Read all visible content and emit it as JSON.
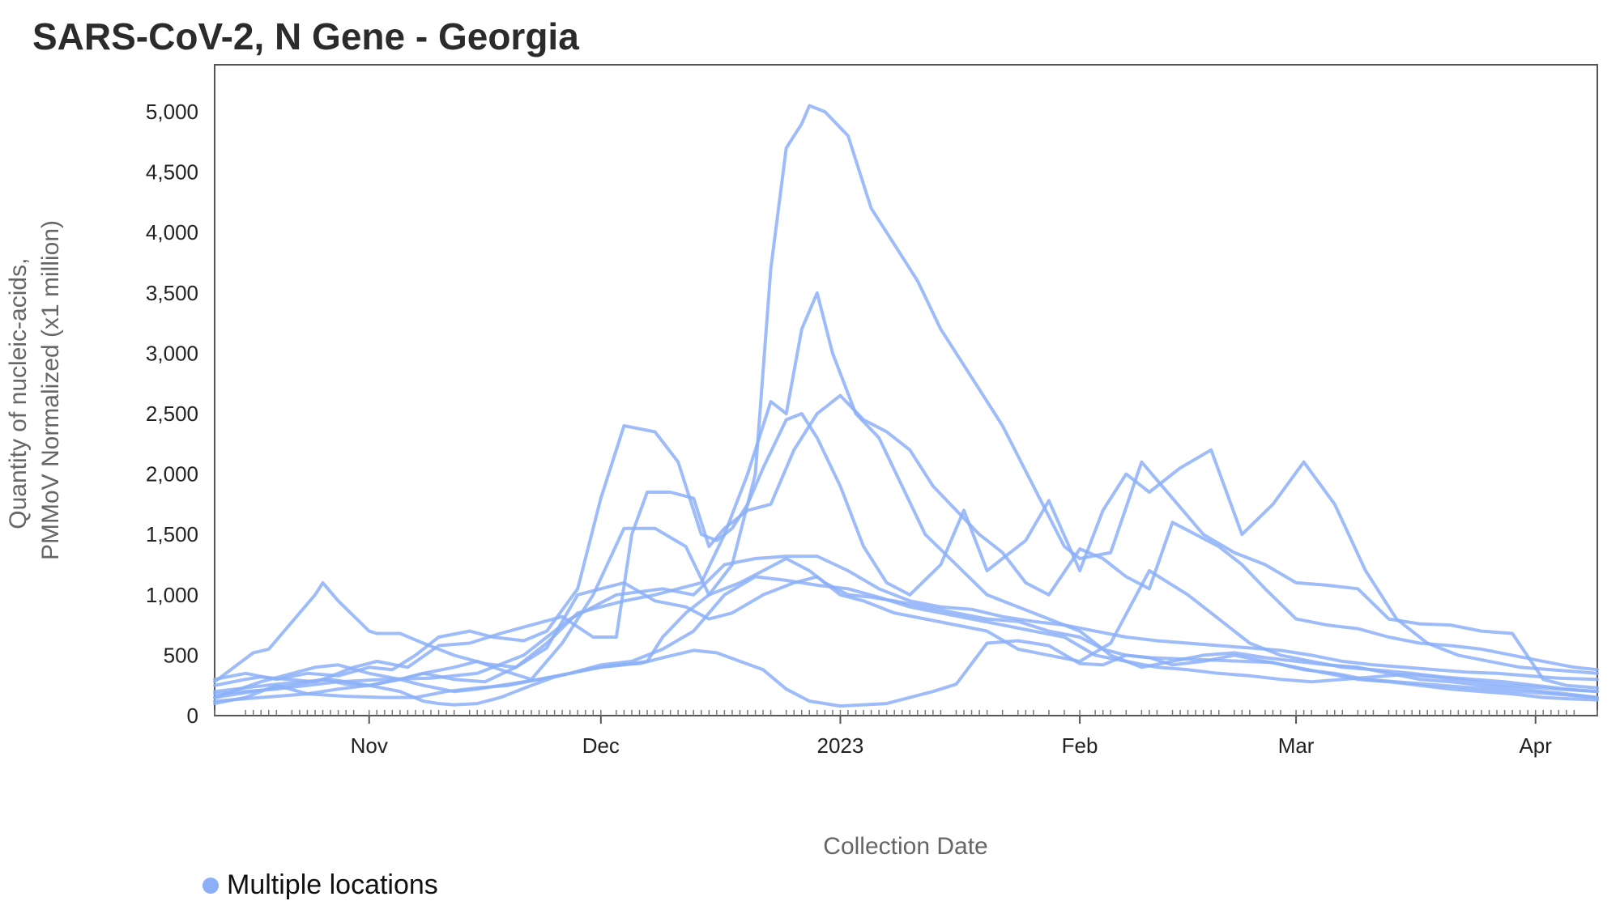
{
  "chart_data": {
    "type": "line",
    "title": "SARS-CoV-2, N Gene - Georgia",
    "xlabel": "Collection Date",
    "ylabel": [
      "Quantity of nucleic-acids,",
      "PMMoV Normalized (x1 million)"
    ],
    "ylim": [
      0,
      5000
    ],
    "xlim": [
      "2022-10-12",
      "2023-04-09"
    ],
    "grid": false,
    "legend_position": "bottom-left",
    "y_ticks": [
      {
        "value": 0,
        "label": "0"
      },
      {
        "value": 500,
        "label": "500"
      },
      {
        "value": 1000,
        "label": "1,000"
      },
      {
        "value": 1500,
        "label": "1,500"
      },
      {
        "value": 2000,
        "label": "2,000"
      },
      {
        "value": 2500,
        "label": "2,500"
      },
      {
        "value": 3000,
        "label": "3,000"
      },
      {
        "value": 3500,
        "label": "3,500"
      },
      {
        "value": 4000,
        "label": "4,000"
      },
      {
        "value": 4500,
        "label": "4,500"
      },
      {
        "value": 5000,
        "label": "5,000"
      }
    ],
    "x_ticks": [
      {
        "date": "2022-11-01",
        "label": "Nov"
      },
      {
        "date": "2022-12-01",
        "label": "Dec"
      },
      {
        "date": "2023-01-01",
        "label": "2023"
      },
      {
        "date": "2023-02-01",
        "label": "Feb"
      },
      {
        "date": "2023-03-01",
        "label": "Mar"
      },
      {
        "date": "2023-04-01",
        "label": "Apr"
      }
    ],
    "legend": {
      "label": "Multiple locations",
      "color": "#8cb0f8"
    },
    "series_color": "#8cb0f8",
    "series": [
      {
        "x": [
          "2022-10-12",
          "2022-10-16",
          "2022-10-18",
          "2022-10-25",
          "2022-10-26",
          "2022-10-29",
          "2022-11-01",
          "2022-11-05",
          "2022-11-08",
          "2022-11-10",
          "2022-11-12",
          "2022-11-15",
          "2022-11-18",
          "2022-11-22",
          "2022-11-25",
          "2022-11-29",
          "2022-12-03",
          "2022-12-06",
          "2022-12-09",
          "2022-12-13",
          "2022-12-16",
          "2022-12-19",
          "2022-12-22",
          "2022-12-25",
          "2022-12-28",
          "2022-12-30",
          "2023-01-01",
          "2023-01-04",
          "2023-01-07",
          "2023-01-10",
          "2023-01-13",
          "2023-01-16",
          "2023-01-20",
          "2023-01-24",
          "2023-01-28",
          "2023-02-01",
          "2023-02-04",
          "2023-02-07",
          "2023-02-10",
          "2023-02-13",
          "2023-02-17",
          "2023-02-21",
          "2023-02-25",
          "2023-03-01",
          "2023-03-05",
          "2023-03-09",
          "2023-03-13",
          "2023-03-17",
          "2023-03-21",
          "2023-03-25",
          "2023-03-29",
          "2023-04-02",
          "2023-04-05",
          "2023-04-09"
        ],
        "y": [
          250,
          300,
          320,
          280,
          300,
          260,
          250,
          200,
          120,
          100,
          90,
          100,
          150,
          250,
          320,
          380,
          420,
          430,
          480,
          540,
          520,
          450,
          380,
          220,
          120,
          100,
          80,
          90,
          100,
          150,
          200,
          260,
          600,
          620,
          580,
          430,
          420,
          500,
          480,
          420,
          450,
          500,
          450,
          400,
          350,
          300,
          280,
          250,
          220,
          200,
          180,
          150,
          140,
          130
        ]
      },
      {
        "x": [
          "2022-10-12",
          "2022-10-17",
          "2022-10-19",
          "2022-10-23",
          "2022-10-25",
          "2022-10-26",
          "2022-10-28",
          "2022-11-01",
          "2022-11-02",
          "2022-11-05",
          "2022-11-08",
          "2022-11-12",
          "2022-11-16",
          "2022-11-20",
          "2022-11-24",
          "2022-11-28",
          "2022-12-01",
          "2022-12-04",
          "2022-12-08",
          "2022-12-12",
          "2022-12-15",
          "2022-12-18",
          "2022-12-22",
          "2022-12-26",
          "2022-12-29",
          "2023-01-01",
          "2023-01-04",
          "2023-01-08",
          "2023-01-12",
          "2023-01-16",
          "2023-01-20",
          "2023-01-24",
          "2023-01-28",
          "2023-02-01",
          "2023-02-05",
          "2023-02-10",
          "2023-02-15",
          "2023-02-19",
          "2023-02-23",
          "2023-02-27",
          "2023-03-03",
          "2023-03-07",
          "2023-03-11",
          "2023-03-16",
          "2023-03-20",
          "2023-03-24",
          "2023-03-28",
          "2023-04-01",
          "2023-04-05",
          "2023-04-09"
        ],
        "y": [
          280,
          520,
          550,
          850,
          1000,
          1100,
          950,
          700,
          680,
          680,
          600,
          500,
          430,
          400,
          560,
          1000,
          1050,
          1100,
          950,
          900,
          800,
          850,
          1000,
          1100,
          1150,
          1000,
          950,
          850,
          800,
          750,
          700,
          550,
          500,
          450,
          600,
          1200,
          1000,
          800,
          600,
          500,
          450,
          400,
          380,
          350,
          320,
          300,
          280,
          250,
          220,
          200
        ]
      },
      {
        "x": [
          "2022-10-12",
          "2022-10-18",
          "2022-10-25",
          "2022-10-28",
          "2022-11-01",
          "2022-11-05",
          "2022-11-08",
          "2022-11-12",
          "2022-11-15",
          "2022-11-18",
          "2022-11-22",
          "2022-11-26",
          "2022-11-30",
          "2022-12-04",
          "2022-12-08",
          "2022-12-12",
          "2022-12-15",
          "2022-12-18",
          "2022-12-21",
          "2022-12-23",
          "2022-12-25",
          "2022-12-27",
          "2022-12-28",
          "2022-12-30",
          "2023-01-02",
          "2023-01-05",
          "2023-01-08",
          "2023-01-11",
          "2023-01-14",
          "2023-01-18",
          "2023-01-22",
          "2023-01-26",
          "2023-01-30",
          "2023-02-01",
          "2023-02-05",
          "2023-02-09",
          "2023-02-13",
          "2023-02-17",
          "2023-02-21",
          "2023-02-25",
          "2023-03-01",
          "2023-03-05",
          "2023-03-09",
          "2023-03-13",
          "2023-03-17",
          "2023-03-21",
          "2023-03-25",
          "2023-03-29",
          "2023-04-02",
          "2023-04-05",
          "2023-04-09"
        ],
        "y": [
          150,
          280,
          400,
          420,
          350,
          300,
          350,
          400,
          450,
          380,
          300,
          600,
          1000,
          1550,
          1550,
          1400,
          1000,
          1250,
          2000,
          3700,
          4700,
          4900,
          5050,
          5000,
          4800,
          4200,
          3900,
          3600,
          3200,
          2800,
          2400,
          1900,
          1400,
          1300,
          1350,
          2100,
          1800,
          1500,
          1350,
          1250,
          1100,
          1080,
          1050,
          800,
          760,
          750,
          700,
          680,
          300,
          250,
          230
        ]
      },
      {
        "x": [
          "2022-10-12",
          "2022-10-20",
          "2022-10-27",
          "2022-11-01",
          "2022-11-05",
          "2022-11-08",
          "2022-11-12",
          "2022-11-16",
          "2022-11-20",
          "2022-11-24",
          "2022-11-28",
          "2022-12-01",
          "2022-12-04",
          "2022-12-08",
          "2022-12-11",
          "2022-12-14",
          "2022-12-17",
          "2022-12-20",
          "2022-12-23",
          "2022-12-25",
          "2022-12-27",
          "2022-12-29",
          "2022-12-31",
          "2023-01-03",
          "2023-01-06",
          "2023-01-09",
          "2023-01-12",
          "2023-01-16",
          "2023-01-20",
          "2023-01-24",
          "2023-01-28",
          "2023-02-01",
          "2023-02-05",
          "2023-02-09",
          "2023-02-13",
          "2023-02-17",
          "2023-02-21",
          "2023-02-25",
          "2023-03-01",
          "2023-03-05",
          "2023-03-09",
          "2023-03-13",
          "2023-03-17",
          "2023-03-21",
          "2023-03-25",
          "2023-03-29",
          "2023-04-02",
          "2023-04-05",
          "2023-04-09"
        ],
        "y": [
          200,
          260,
          300,
          250,
          300,
          350,
          300,
          280,
          400,
          600,
          850,
          900,
          950,
          1000,
          1050,
          1100,
          1500,
          2000,
          2600,
          2500,
          3200,
          3500,
          3000,
          2500,
          2300,
          1900,
          1500,
          1250,
          1000,
          900,
          800,
          700,
          500,
          400,
          450,
          500,
          520,
          480,
          450,
          420,
          400,
          350,
          300,
          280,
          250,
          230,
          200,
          180,
          150
        ]
      },
      {
        "x": [
          "2022-10-12",
          "2022-10-16",
          "2022-10-20",
          "2022-10-24",
          "2022-10-28",
          "2022-11-01",
          "2022-11-05",
          "2022-11-08",
          "2022-11-12",
          "2022-11-15",
          "2022-11-19",
          "2022-11-23",
          "2022-11-27",
          "2022-12-01",
          "2022-12-04",
          "2022-12-07",
          "2022-12-09",
          "2022-12-12",
          "2022-12-15",
          "2022-12-17",
          "2022-12-19",
          "2022-12-22",
          "2022-12-25",
          "2022-12-28",
          "2022-12-30",
          "2023-01-02",
          "2023-01-05",
          "2023-01-08",
          "2023-01-12",
          "2023-01-16",
          "2023-01-20",
          "2023-01-24",
          "2023-01-28",
          "2023-02-01",
          "2023-02-04",
          "2023-02-07",
          "2023-02-10",
          "2023-02-14",
          "2023-02-18",
          "2023-02-22",
          "2023-02-26",
          "2023-03-02",
          "2023-03-06",
          "2023-03-10",
          "2023-03-14",
          "2023-03-18",
          "2023-03-22",
          "2023-03-26",
          "2023-03-30",
          "2023-04-03",
          "2023-04-09"
        ],
        "y": [
          100,
          150,
          250,
          180,
          220,
          250,
          300,
          250,
          200,
          220,
          260,
          300,
          350,
          400,
          420,
          450,
          650,
          850,
          1000,
          1050,
          1100,
          1200,
          1300,
          1200,
          1100,
          1000,
          980,
          950,
          900,
          850,
          800,
          780,
          700,
          650,
          550,
          500,
          480,
          470,
          460,
          450,
          440,
          380,
          350,
          300,
          280,
          260,
          240,
          220,
          200,
          180,
          150
        ]
      },
      {
        "x": [
          "2022-10-12",
          "2022-10-16",
          "2022-10-20",
          "2022-10-24",
          "2022-10-28",
          "2022-11-01",
          "2022-11-04",
          "2022-11-07",
          "2022-11-10",
          "2022-11-14",
          "2022-11-17",
          "2022-11-21",
          "2022-11-24",
          "2022-11-28",
          "2022-12-01",
          "2022-12-04",
          "2022-12-08",
          "2022-12-11",
          "2022-12-14",
          "2022-12-16",
          "2022-12-18",
          "2022-12-20",
          "2022-12-22",
          "2022-12-25",
          "2022-12-27",
          "2022-12-29",
          "2023-01-01",
          "2023-01-04",
          "2023-01-07",
          "2023-01-10",
          "2023-01-14",
          "2023-01-17",
          "2023-01-20",
          "2023-01-22",
          "2023-01-25",
          "2023-01-28",
          "2023-02-01",
          "2023-02-04",
          "2023-02-07",
          "2023-02-10",
          "2023-02-14",
          "2023-02-18",
          "2023-02-22",
          "2023-02-26",
          "2023-03-02",
          "2023-03-06",
          "2023-03-10",
          "2023-03-14",
          "2023-03-18",
          "2023-03-22",
          "2023-03-26",
          "2023-03-30",
          "2023-04-03",
          "2023-04-09"
        ],
        "y": [
          300,
          350,
          300,
          350,
          330,
          400,
          380,
          500,
          650,
          700,
          650,
          620,
          700,
          1050,
          1800,
          2400,
          2350,
          2100,
          1500,
          1450,
          1550,
          1750,
          2050,
          2450,
          2500,
          2300,
          1900,
          1400,
          1100,
          1000,
          1250,
          1700,
          1200,
          1300,
          1450,
          1780,
          1200,
          1700,
          2000,
          1850,
          2050,
          2200,
          1500,
          1750,
          2100,
          1750,
          1200,
          800,
          600,
          500,
          450,
          400,
          380,
          350
        ]
      },
      {
        "x": [
          "2022-10-12",
          "2022-10-17",
          "2022-10-22",
          "2022-10-26",
          "2022-10-30",
          "2022-11-02",
          "2022-11-06",
          "2022-11-10",
          "2022-11-14",
          "2022-11-18",
          "2022-11-22",
          "2022-11-26",
          "2022-11-30",
          "2022-12-03",
          "2022-12-05",
          "2022-12-07",
          "2022-12-10",
          "2022-12-13",
          "2022-12-15",
          "2022-12-17",
          "2022-12-20",
          "2022-12-23",
          "2022-12-26",
          "2022-12-29",
          "2023-01-01",
          "2023-01-04",
          "2023-01-07",
          "2023-01-10",
          "2023-01-13",
          "2023-01-16",
          "2023-01-19",
          "2023-01-22",
          "2023-01-25",
          "2023-01-28",
          "2023-02-01",
          "2023-02-04",
          "2023-02-07",
          "2023-02-10",
          "2023-02-13",
          "2023-02-16",
          "2023-02-19",
          "2023-02-22",
          "2023-02-25",
          "2023-03-01",
          "2023-03-05",
          "2023-03-09",
          "2023-03-13",
          "2023-03-17",
          "2023-03-21",
          "2023-03-25",
          "2023-03-29",
          "2023-04-02",
          "2023-04-06",
          "2023-04-09"
        ],
        "y": [
          150,
          200,
          250,
          300,
          400,
          450,
          400,
          580,
          600,
          680,
          750,
          820,
          650,
          650,
          1500,
          1850,
          1850,
          1800,
          1400,
          1550,
          1700,
          1750,
          2200,
          2500,
          2650,
          2450,
          2350,
          2200,
          1900,
          1700,
          1500,
          1350,
          1100,
          1000,
          1380,
          1300,
          1150,
          1050,
          1600,
          1500,
          1400,
          1250,
          1050,
          800,
          750,
          720,
          650,
          600,
          580,
          550,
          500,
          450,
          400,
          380
        ]
      },
      {
        "x": [
          "2022-10-12",
          "2022-10-18",
          "2022-10-24",
          "2022-10-29",
          "2022-11-03",
          "2022-11-07",
          "2022-11-11",
          "2022-11-15",
          "2022-11-19",
          "2022-11-23",
          "2022-11-27",
          "2022-12-01",
          "2022-12-05",
          "2022-12-09",
          "2022-12-13",
          "2022-12-17",
          "2022-12-21",
          "2022-12-25",
          "2022-12-29",
          "2023-01-02",
          "2023-01-06",
          "2023-01-10",
          "2023-01-14",
          "2023-01-18",
          "2023-01-22",
          "2023-01-26",
          "2023-01-30",
          "2023-02-03",
          "2023-02-07",
          "2023-02-11",
          "2023-02-15",
          "2023-02-19",
          "2023-02-23",
          "2023-02-27",
          "2023-03-03",
          "2023-03-07",
          "2023-03-11",
          "2023-03-15",
          "2023-03-19",
          "2023-03-23",
          "2023-03-27",
          "2023-03-31",
          "2023-04-04",
          "2023-04-09"
        ],
        "y": [
          120,
          150,
          180,
          160,
          150,
          150,
          200,
          230,
          250,
          300,
          350,
          420,
          450,
          550,
          700,
          1000,
          1150,
          1120,
          1080,
          1050,
          980,
          900,
          850,
          800,
          750,
          700,
          650,
          500,
          450,
          400,
          380,
          350,
          330,
          300,
          280,
          300,
          320,
          340,
          320,
          290,
          260,
          240,
          220,
          200
        ]
      },
      {
        "x": [
          "2022-10-12",
          "2022-10-20",
          "2022-10-28",
          "2022-11-03",
          "2022-11-09",
          "2022-11-15",
          "2022-11-21",
          "2022-11-27",
          "2022-12-03",
          "2022-12-09",
          "2022-12-13",
          "2022-12-17",
          "2022-12-21",
          "2022-12-25",
          "2022-12-29",
          "2023-01-02",
          "2023-01-06",
          "2023-01-10",
          "2023-01-14",
          "2023-01-18",
          "2023-01-22",
          "2023-01-26",
          "2023-01-30",
          "2023-02-03",
          "2023-02-07",
          "2023-02-11",
          "2023-02-15",
          "2023-02-19",
          "2023-02-23",
          "2023-02-27",
          "2023-03-03",
          "2023-03-07",
          "2023-03-11",
          "2023-03-15",
          "2023-03-19",
          "2023-03-23",
          "2023-03-27",
          "2023-03-31",
          "2023-04-04",
          "2023-04-09"
        ],
        "y": [
          180,
          220,
          280,
          300,
          310,
          350,
          500,
          800,
          1000,
          1050,
          1000,
          1250,
          1300,
          1320,
          1320,
          1200,
          1050,
          950,
          900,
          880,
          820,
          780,
          750,
          700,
          650,
          620,
          600,
          580,
          560,
          540,
          500,
          450,
          420,
          400,
          380,
          360,
          350,
          330,
          310,
          300
        ]
      }
    ]
  }
}
